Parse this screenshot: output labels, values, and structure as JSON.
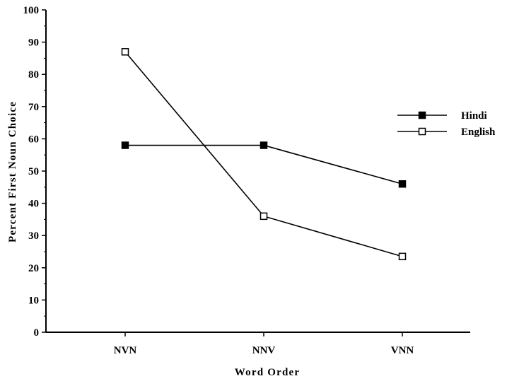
{
  "chart_data": {
    "type": "line",
    "title": "",
    "xlabel": "Word Order",
    "ylabel": "Percent First Noun Choice",
    "categories": [
      "NVN",
      "NNV",
      "VNN"
    ],
    "ylim": [
      0,
      100
    ],
    "yticks": [
      0,
      10,
      20,
      30,
      40,
      50,
      60,
      70,
      80,
      90,
      100
    ],
    "grid": false,
    "legend_position": "right",
    "series": [
      {
        "name": "Hindi",
        "values": [
          58,
          58,
          46
        ],
        "marker": "filled-square",
        "color": "#000000"
      },
      {
        "name": "English",
        "values": [
          87,
          36,
          23.5
        ],
        "marker": "open-square",
        "color": "#000000"
      }
    ]
  }
}
